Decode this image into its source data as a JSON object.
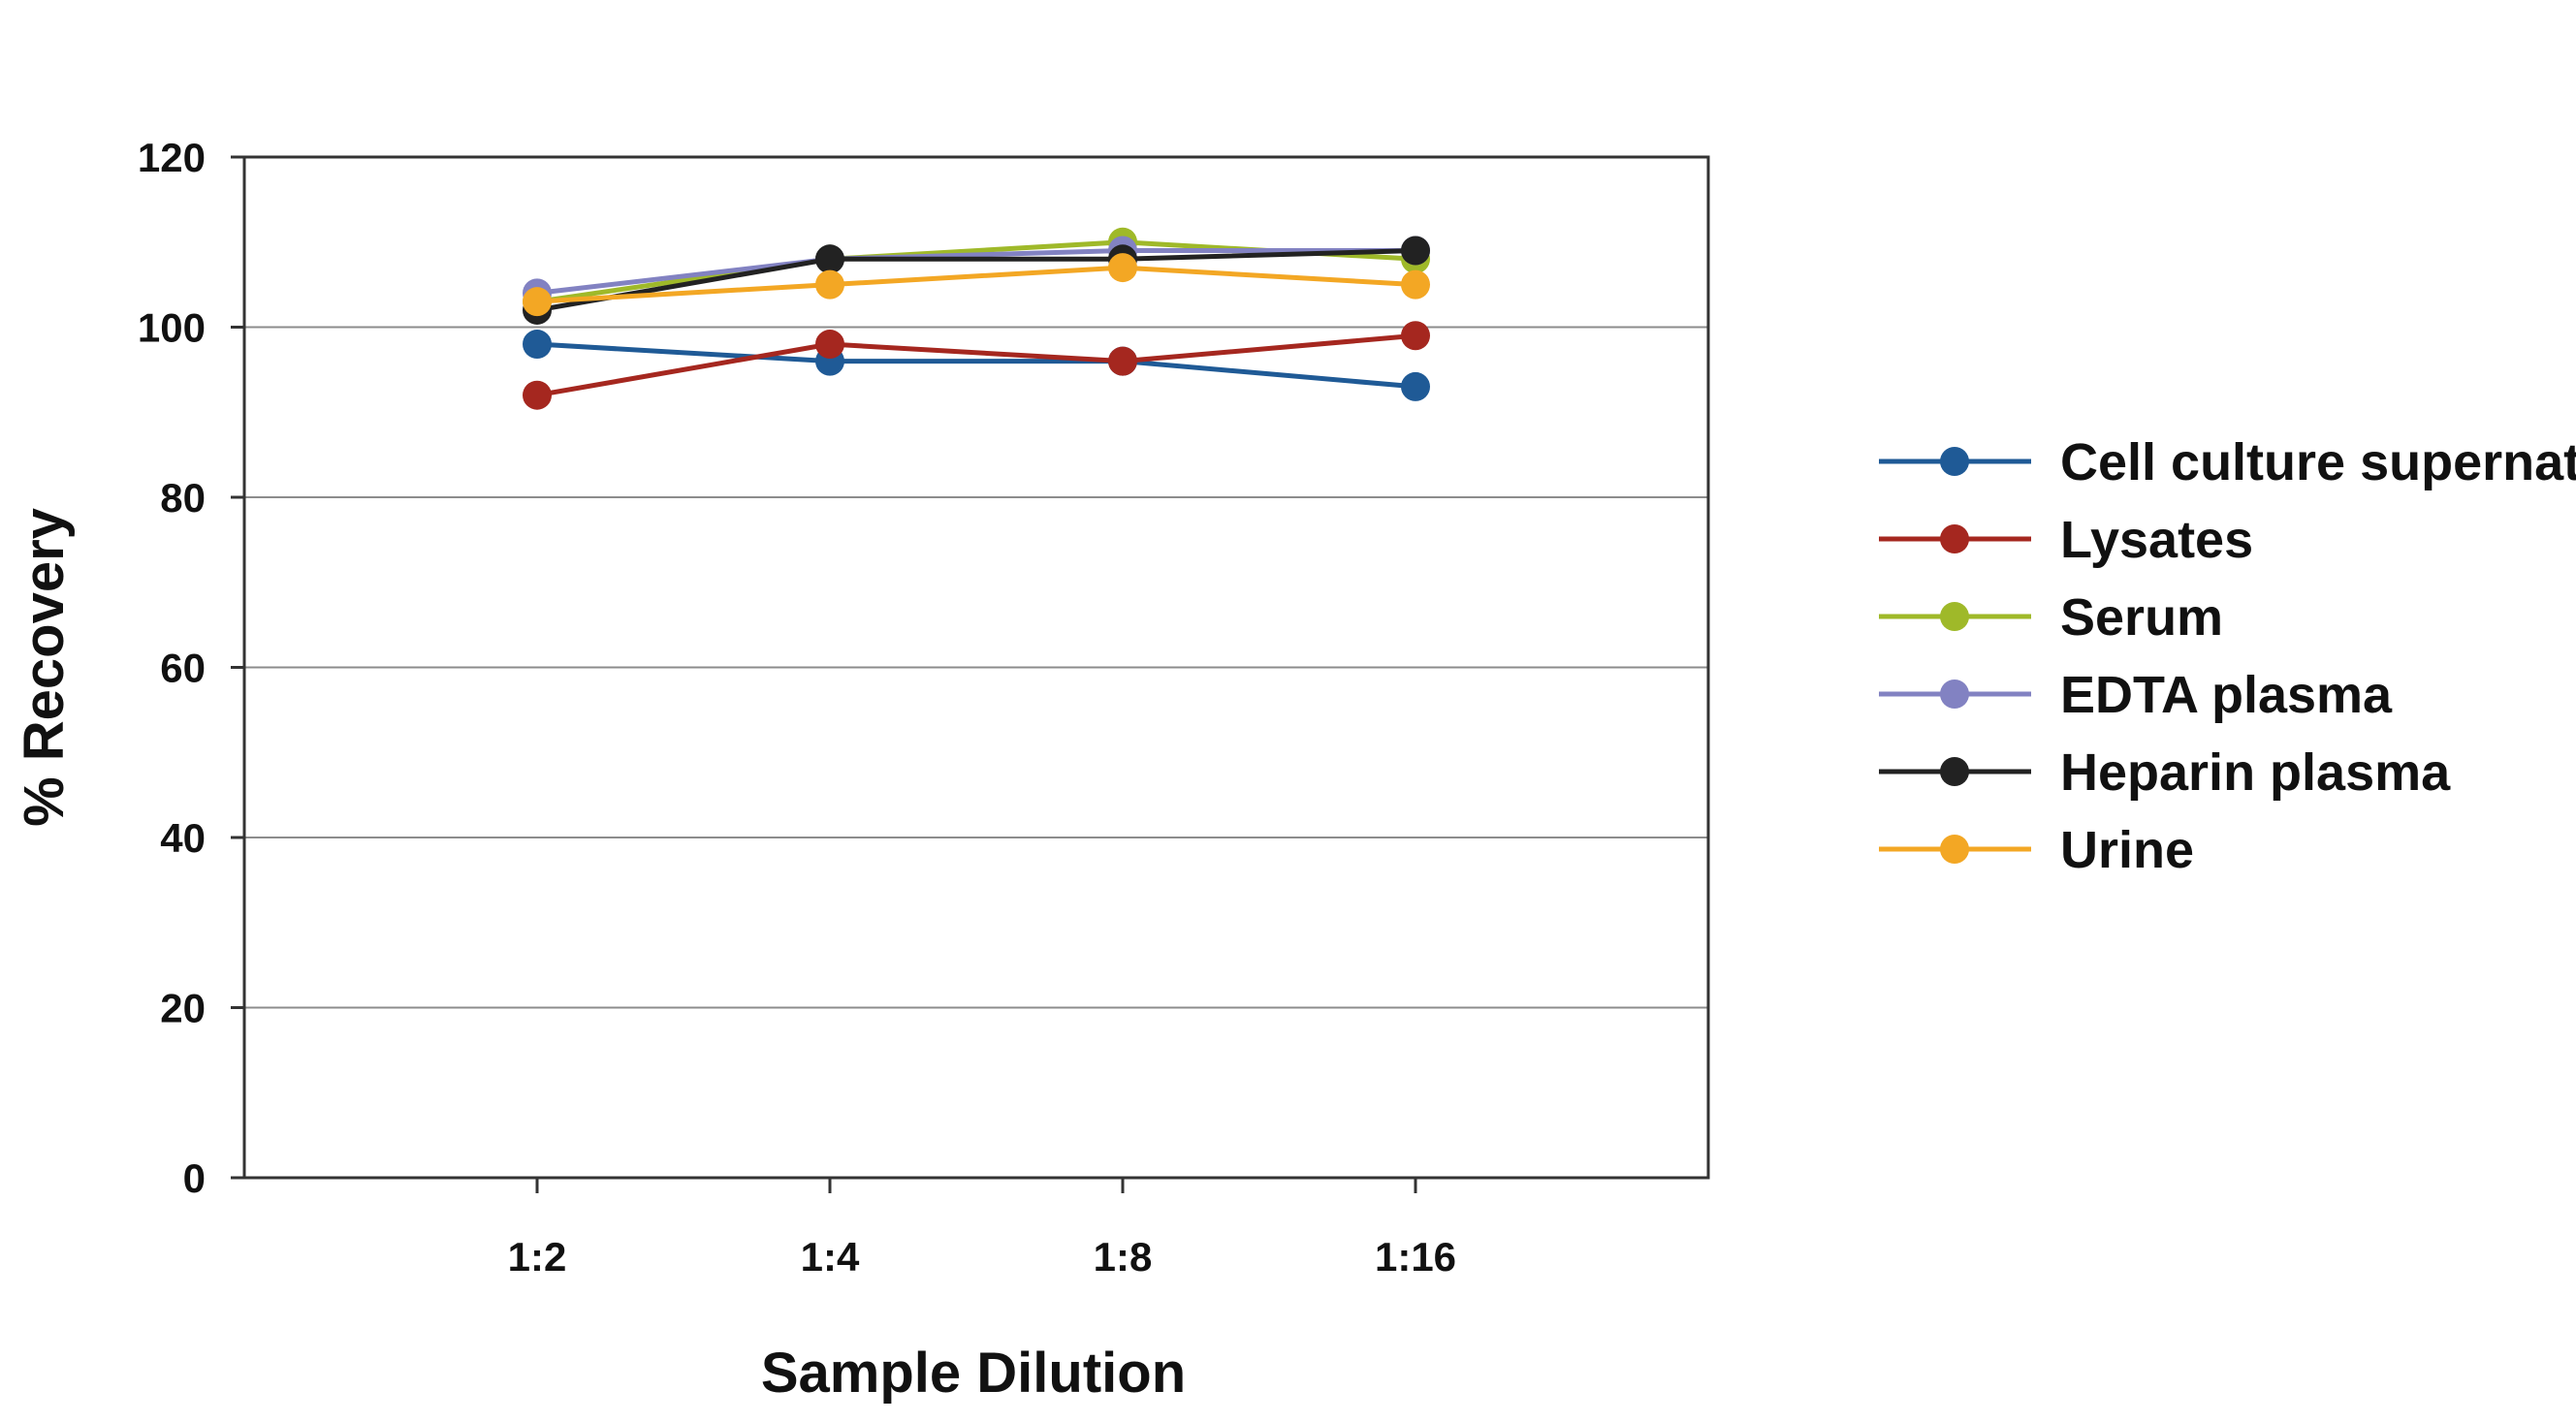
{
  "chart_data": {
    "type": "line",
    "title": "",
    "xlabel": "Sample Dilution",
    "ylabel": "% Recovery",
    "categories": [
      "1:2",
      "1:4",
      "1:8",
      "1:16"
    ],
    "ylim": [
      0,
      120
    ],
    "yticks": [
      0,
      20,
      40,
      60,
      80,
      100,
      120
    ],
    "grid": true,
    "legend_position": "right",
    "series": [
      {
        "name": "Cell culture supernates",
        "color": "#1f5a96",
        "values": [
          98,
          96,
          96,
          93
        ]
      },
      {
        "name": "Lysates",
        "color": "#a5271f",
        "values": [
          92,
          98,
          96,
          99
        ]
      },
      {
        "name": "Serum",
        "color": "#9fb929",
        "values": [
          103,
          108,
          110,
          108
        ]
      },
      {
        "name": "EDTA plasma",
        "color": "#8282c2",
        "values": [
          104,
          108,
          109,
          109
        ]
      },
      {
        "name": "Heparin plasma",
        "color": "#222222",
        "values": [
          102,
          108,
          108,
          109
        ]
      },
      {
        "name": "Urine",
        "color": "#f3a724",
        "values": [
          103,
          105,
          107,
          105
        ]
      }
    ]
  }
}
